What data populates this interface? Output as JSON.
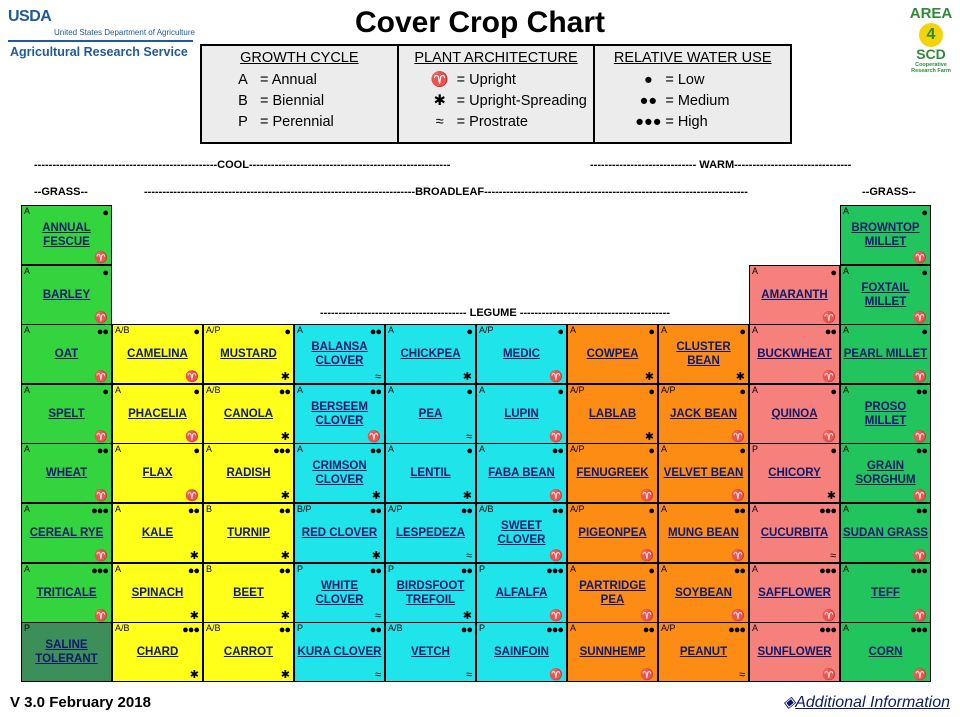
{
  "header": {
    "usda_mark": "USDA",
    "usda_department": "United States Department of Agriculture",
    "usda_service": "Agricultural Research Service",
    "title": "Cover Crop Chart",
    "logo_line1": "AREA",
    "logo_number": "4",
    "logo_line2": "SCD",
    "logo_line3": "Cooperative Research Farm"
  },
  "legend": {
    "growth": {
      "title": "GROWTH CYCLE",
      "rows": [
        [
          "A",
          "= Annual"
        ],
        [
          "B",
          "= Biennial"
        ],
        [
          "P",
          "= Perennial"
        ]
      ]
    },
    "architecture": {
      "title": "PLANT ARCHITECTURE",
      "rows": [
        [
          "♈",
          "= Upright"
        ],
        [
          "✱",
          "= Upright-Spreading"
        ],
        [
          "≈",
          "= Prostrate"
        ]
      ]
    },
    "water": {
      "title": "RELATIVE WATER USE",
      "rows": [
        [
          "💧",
          "= Low"
        ],
        [
          "💧💧",
          "= Medium"
        ],
        [
          "💧💧💧",
          "= High"
        ]
      ]
    }
  },
  "sections": {
    "cool": "COOL",
    "warm": "WARM",
    "grass": "GRASS",
    "broadleaf": "BROADLEAF",
    "legume": "LEGUME"
  },
  "colors": {
    "grass": "#33d43d",
    "saline": "#3d8f5a",
    "warm_grass": "#22c45e",
    "brassica": "#ffff1a",
    "cool_legume": "#1fe5ea",
    "warm_legume": "#fd8c14",
    "warm_broadleaf": "#f6807c"
  },
  "crops": [
    {
      "name": "ANNUAL FESCUE",
      "code": "A",
      "water": 1,
      "arch": "upright",
      "col": 0,
      "row": 0,
      "color": "c-green"
    },
    {
      "name": "BARLEY",
      "code": "A",
      "water": 1,
      "arch": "upright",
      "col": 0,
      "row": 1,
      "color": "c-green"
    },
    {
      "name": "OAT",
      "code": "A",
      "water": 2,
      "arch": "upright",
      "col": 0,
      "row": 2,
      "color": "c-green"
    },
    {
      "name": "SPELT",
      "code": "A",
      "water": 1,
      "arch": "upright",
      "col": 0,
      "row": 3,
      "color": "c-green"
    },
    {
      "name": "WHEAT",
      "code": "A",
      "water": 2,
      "arch": "upright",
      "col": 0,
      "row": 4,
      "color": "c-green"
    },
    {
      "name": "CEREAL RYE",
      "code": "A",
      "water": 3,
      "arch": "upright",
      "col": 0,
      "row": 5,
      "color": "c-green"
    },
    {
      "name": "TRITICALE",
      "code": "A",
      "water": 3,
      "arch": "upright",
      "col": 0,
      "row": 6,
      "color": "c-green"
    },
    {
      "name": "SALINE TOLERANT",
      "code": "P",
      "water": 0,
      "arch": "",
      "col": 0,
      "row": 7,
      "color": "c-dkgreen"
    },
    {
      "name": "CAMELINA",
      "code": "A/B",
      "water": 1,
      "arch": "upright",
      "col": 1,
      "row": 2,
      "color": "c-yellow"
    },
    {
      "name": "PHACELIA",
      "code": "A",
      "water": 1,
      "arch": "upright",
      "col": 1,
      "row": 3,
      "color": "c-yellow"
    },
    {
      "name": "FLAX",
      "code": "A",
      "water": 1,
      "arch": "upright",
      "col": 1,
      "row": 4,
      "color": "c-yellow"
    },
    {
      "name": "KALE",
      "code": "A",
      "water": 2,
      "arch": "spreading",
      "col": 1,
      "row": 5,
      "color": "c-yellow"
    },
    {
      "name": "SPINACH",
      "code": "A",
      "water": 2,
      "arch": "spreading",
      "col": 1,
      "row": 6,
      "color": "c-yellow"
    },
    {
      "name": "CHARD",
      "code": "A/B",
      "water": 3,
      "arch": "spreading",
      "col": 1,
      "row": 7,
      "color": "c-yellow"
    },
    {
      "name": "MUSTARD",
      "code": "A/P",
      "water": 1,
      "arch": "spreading",
      "col": 2,
      "row": 2,
      "color": "c-yellow"
    },
    {
      "name": "CANOLA",
      "code": "A/B",
      "water": 2,
      "arch": "spreading",
      "col": 2,
      "row": 3,
      "color": "c-yellow"
    },
    {
      "name": "RADISH",
      "code": "A",
      "water": 3,
      "arch": "spreading",
      "col": 2,
      "row": 4,
      "color": "c-yellow"
    },
    {
      "name": "TURNIP",
      "code": "B",
      "water": 2,
      "arch": "spreading",
      "col": 2,
      "row": 5,
      "color": "c-yellow"
    },
    {
      "name": "BEET",
      "code": "B",
      "water": 2,
      "arch": "spreading",
      "col": 2,
      "row": 6,
      "color": "c-yellow"
    },
    {
      "name": "CARROT",
      "code": "A/B",
      "water": 2,
      "arch": "spreading",
      "col": 2,
      "row": 7,
      "color": "c-yellow"
    },
    {
      "name": "BALANSA CLOVER",
      "code": "A",
      "water": 2,
      "arch": "prostrate",
      "col": 3,
      "row": 2,
      "color": "c-cyan"
    },
    {
      "name": "BERSEEM CLOVER",
      "code": "A",
      "water": 2,
      "arch": "upright",
      "col": 3,
      "row": 3,
      "color": "c-cyan"
    },
    {
      "name": "CRIMSON CLOVER",
      "code": "A",
      "water": 2,
      "arch": "spreading",
      "col": 3,
      "row": 4,
      "color": "c-cyan"
    },
    {
      "name": "RED CLOVER",
      "code": "B/P",
      "water": 2,
      "arch": "spreading",
      "col": 3,
      "row": 5,
      "color": "c-cyan"
    },
    {
      "name": "WHITE CLOVER",
      "code": "P",
      "water": 2,
      "arch": "prostrate",
      "col": 3,
      "row": 6,
      "color": "c-cyan"
    },
    {
      "name": "KURA CLOVER",
      "code": "P",
      "water": 2,
      "arch": "prostrate",
      "col": 3,
      "row": 7,
      "color": "c-cyan"
    },
    {
      "name": "CHICKPEA",
      "code": "A",
      "water": 1,
      "arch": "spreading",
      "col": 4,
      "row": 2,
      "color": "c-cyan"
    },
    {
      "name": "PEA",
      "code": "A",
      "water": 1,
      "arch": "prostrate",
      "col": 4,
      "row": 3,
      "color": "c-cyan"
    },
    {
      "name": "LENTIL",
      "code": "A",
      "water": 1,
      "arch": "spreading",
      "col": 4,
      "row": 4,
      "color": "c-cyan"
    },
    {
      "name": "LESPEDEZA",
      "code": "A/P",
      "water": 2,
      "arch": "prostrate",
      "col": 4,
      "row": 5,
      "color": "c-cyan"
    },
    {
      "name": "BIRDSFOOT TREFOIL",
      "code": "P",
      "water": 2,
      "arch": "spreading",
      "col": 4,
      "row": 6,
      "color": "c-cyan"
    },
    {
      "name": "VETCH",
      "code": "A/B",
      "water": 2,
      "arch": "prostrate",
      "col": 4,
      "row": 7,
      "color": "c-cyan"
    },
    {
      "name": "MEDIC",
      "code": "A/P",
      "water": 1,
      "arch": "upright",
      "col": 5,
      "row": 2,
      "color": "c-cyan"
    },
    {
      "name": "LUPIN",
      "code": "A",
      "water": 1,
      "arch": "upright",
      "col": 5,
      "row": 3,
      "color": "c-cyan"
    },
    {
      "name": "FABA BEAN",
      "code": "A",
      "water": 2,
      "arch": "upright",
      "col": 5,
      "row": 4,
      "color": "c-cyan"
    },
    {
      "name": "SWEET CLOVER",
      "code": "A/B",
      "water": 2,
      "arch": "upright",
      "col": 5,
      "row": 5,
      "color": "c-cyan"
    },
    {
      "name": "ALFALFA",
      "code": "P",
      "water": 3,
      "arch": "upright",
      "col": 5,
      "row": 6,
      "color": "c-cyan"
    },
    {
      "name": "SAINFOIN",
      "code": "P",
      "water": 3,
      "arch": "upright",
      "col": 5,
      "row": 7,
      "color": "c-cyan"
    },
    {
      "name": "COWPEA",
      "code": "A",
      "water": 1,
      "arch": "spreading",
      "col": 6,
      "row": 2,
      "color": "c-orange"
    },
    {
      "name": "LABLAB",
      "code": "A/P",
      "water": 1,
      "arch": "spreading",
      "col": 6,
      "row": 3,
      "color": "c-orange"
    },
    {
      "name": "FENUGREEK",
      "code": "A/P",
      "water": 1,
      "arch": "upright",
      "col": 6,
      "row": 4,
      "color": "c-orange"
    },
    {
      "name": "PIGEONPEA",
      "code": "A/P",
      "water": 1,
      "arch": "upright",
      "col": 6,
      "row": 5,
      "color": "c-orange"
    },
    {
      "name": "PARTRIDGE PEA",
      "code": "A",
      "water": 1,
      "arch": "upright",
      "col": 6,
      "row": 6,
      "color": "c-orange"
    },
    {
      "name": "SUNNHEMP",
      "code": "A",
      "water": 2,
      "arch": "upright",
      "col": 6,
      "row": 7,
      "color": "c-orange"
    },
    {
      "name": "CLUSTER BEAN",
      "code": "A",
      "water": 1,
      "arch": "spreading",
      "col": 7,
      "row": 2,
      "color": "c-orange"
    },
    {
      "name": "JACK BEAN",
      "code": "A/P",
      "water": 1,
      "arch": "upright",
      "col": 7,
      "row": 3,
      "color": "c-orange"
    },
    {
      "name": "VELVET BEAN",
      "code": "A",
      "water": 1,
      "arch": "upright",
      "col": 7,
      "row": 4,
      "color": "c-orange"
    },
    {
      "name": "MUNG BEAN",
      "code": "A",
      "water": 2,
      "arch": "upright",
      "col": 7,
      "row": 5,
      "color": "c-orange"
    },
    {
      "name": "SOYBEAN",
      "code": "A",
      "water": 2,
      "arch": "upright",
      "col": 7,
      "row": 6,
      "color": "c-orange"
    },
    {
      "name": "PEANUT",
      "code": "A/P",
      "water": 3,
      "arch": "prostrate",
      "col": 7,
      "row": 7,
      "color": "c-orange"
    },
    {
      "name": "AMARANTH",
      "code": "A",
      "water": 1,
      "arch": "upright",
      "col": 8,
      "row": 1,
      "color": "c-pink"
    },
    {
      "name": "BUCKWHEAT",
      "code": "A",
      "water": 2,
      "arch": "upright",
      "col": 8,
      "row": 2,
      "color": "c-pink"
    },
    {
      "name": "QUINOA",
      "code": "A",
      "water": 1,
      "arch": "upright",
      "col": 8,
      "row": 3,
      "color": "c-pink"
    },
    {
      "name": "CHICORY",
      "code": "P",
      "water": 1,
      "arch": "spreading",
      "col": 8,
      "row": 4,
      "color": "c-pink"
    },
    {
      "name": "CUCURBITA",
      "code": "A",
      "water": 3,
      "arch": "prostrate",
      "col": 8,
      "row": 5,
      "color": "c-pink"
    },
    {
      "name": "SAFFLOWER",
      "code": "A",
      "water": 3,
      "arch": "upright",
      "col": 8,
      "row": 6,
      "color": "c-pink"
    },
    {
      "name": "SUNFLOWER",
      "code": "A",
      "water": 3,
      "arch": "upright",
      "col": 8,
      "row": 7,
      "color": "c-pink"
    },
    {
      "name": "BROWNTOP MILLET",
      "code": "A",
      "water": 1,
      "arch": "upright",
      "col": 9,
      "row": 0,
      "color": "c-mint"
    },
    {
      "name": "FOXTAIL MILLET",
      "code": "A",
      "water": 1,
      "arch": "upright",
      "col": 9,
      "row": 1,
      "color": "c-mint"
    },
    {
      "name": "PEARL MILLET",
      "code": "A",
      "water": 1,
      "arch": "upright",
      "col": 9,
      "row": 2,
      "color": "c-mint"
    },
    {
      "name": "PROSO MILLET",
      "code": "A",
      "water": 2,
      "arch": "upright",
      "col": 9,
      "row": 3,
      "color": "c-mint"
    },
    {
      "name": "GRAIN SORGHUM",
      "code": "A",
      "water": 2,
      "arch": "upright",
      "col": 9,
      "row": 4,
      "color": "c-mint"
    },
    {
      "name": "SUDAN GRASS",
      "code": "A",
      "water": 2,
      "arch": "upright",
      "col": 9,
      "row": 5,
      "color": "c-mint"
    },
    {
      "name": "TEFF",
      "code": "A",
      "water": 3,
      "arch": "upright",
      "col": 9,
      "row": 6,
      "color": "c-mint"
    },
    {
      "name": "CORN",
      "code": "A",
      "water": 3,
      "arch": "upright",
      "col": 9,
      "row": 7,
      "color": "c-mint"
    }
  ],
  "footer": {
    "version": "V 3.0 February 2018",
    "additional_info": "Additional Information"
  }
}
